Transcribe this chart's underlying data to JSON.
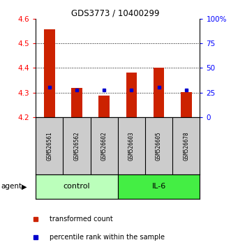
{
  "title": "GDS3773 / 10400299",
  "samples": [
    "GSM526561",
    "GSM526562",
    "GSM526602",
    "GSM526603",
    "GSM526605",
    "GSM526678"
  ],
  "bar_tops": [
    4.555,
    4.32,
    4.288,
    4.382,
    4.402,
    4.302
  ],
  "bar_base": 4.2,
  "percentile_values": [
    4.323,
    4.312,
    4.312,
    4.312,
    4.322,
    4.312
  ],
  "ylim_left": [
    4.2,
    4.6
  ],
  "ylim_right": [
    0,
    100
  ],
  "yticks_left": [
    4.2,
    4.3,
    4.4,
    4.5,
    4.6
  ],
  "yticks_right": [
    0,
    25,
    50,
    75,
    100
  ],
  "ytick_labels_right": [
    "0",
    "25",
    "50",
    "75",
    "100%"
  ],
  "bar_color": "#cc2200",
  "blue_color": "#0000cc",
  "groups": [
    {
      "label": "control",
      "indices": [
        0,
        1,
        2
      ],
      "color": "#bbffbb"
    },
    {
      "label": "IL-6",
      "indices": [
        3,
        4,
        5
      ],
      "color": "#44ee44"
    }
  ],
  "agent_label": "agent",
  "legend_items": [
    {
      "color": "#cc2200",
      "label": "transformed count"
    },
    {
      "color": "#0000cc",
      "label": "percentile rank within the sample"
    }
  ],
  "sample_bg_color": "#cccccc"
}
